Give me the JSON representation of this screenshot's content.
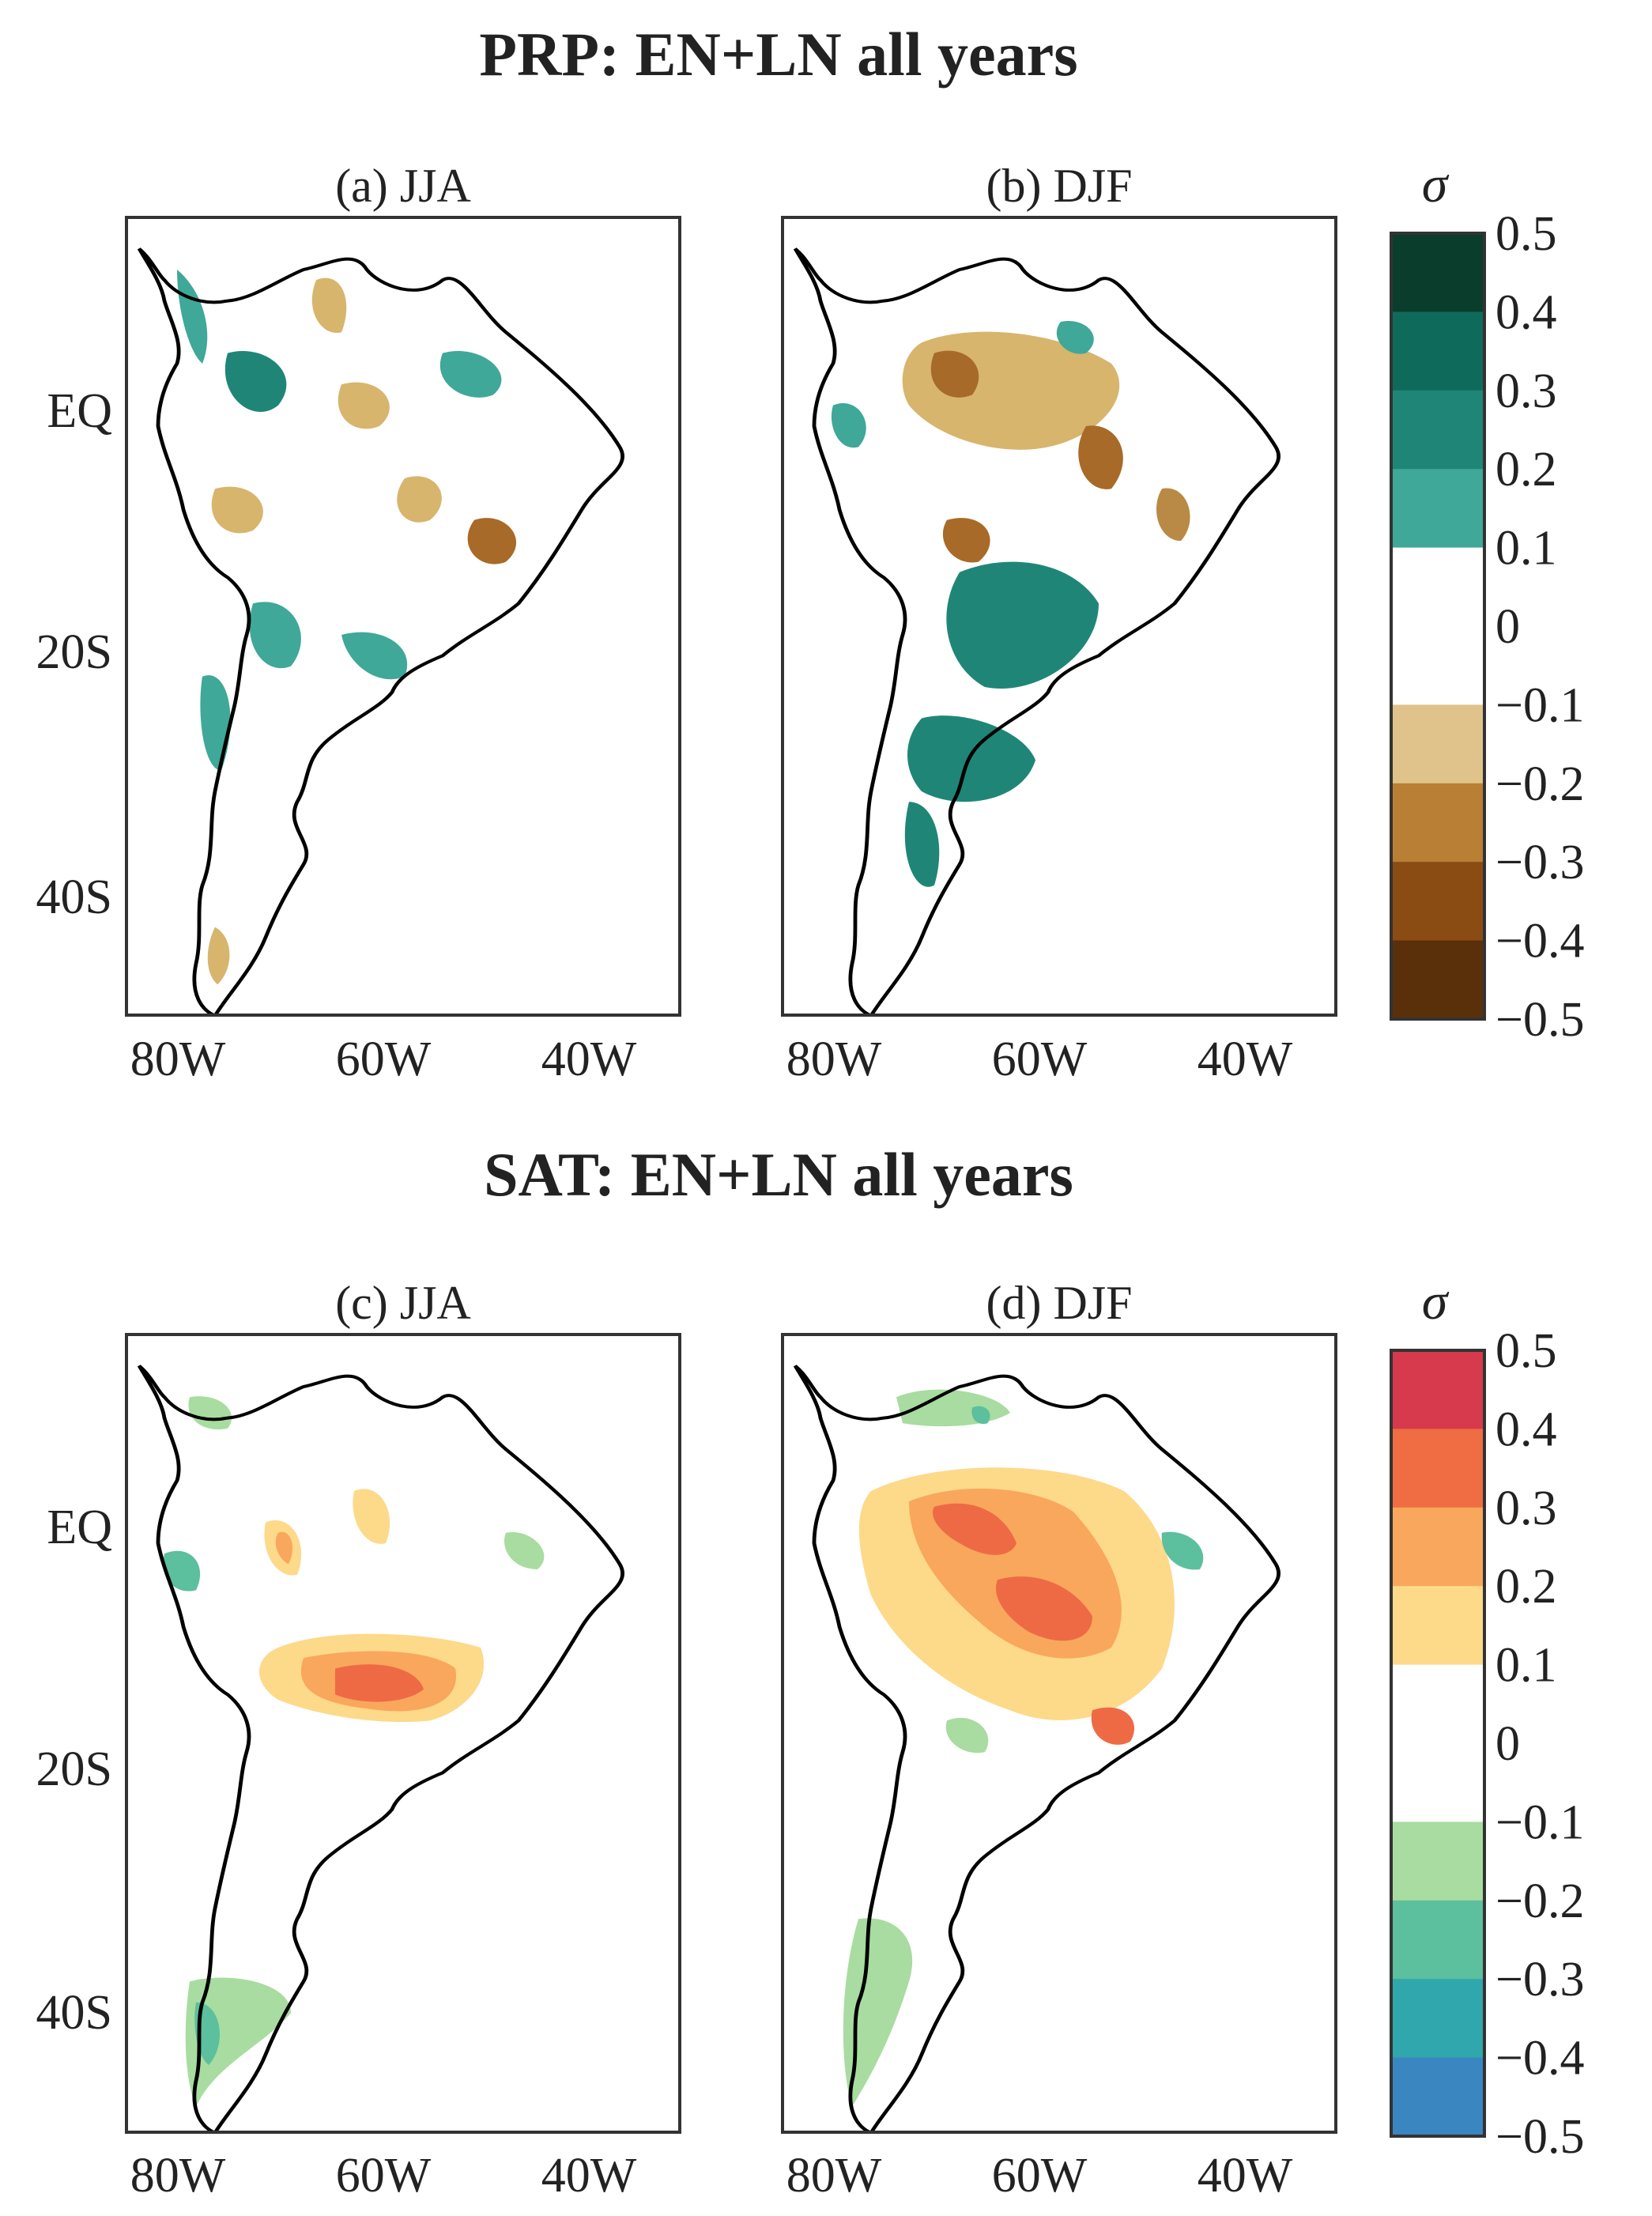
{
  "sections": [
    {
      "title": "PRP: EN+LN all years",
      "panels": [
        {
          "title": "(a) JJA"
        },
        {
          "title": "(b) DJF"
        }
      ],
      "colorbar": {
        "symbol": "σ",
        "ticks": [
          "0.5",
          "0.4",
          "0.3",
          "0.2",
          "0.1",
          "0",
          "−0.1",
          "−0.2",
          "−0.3",
          "−0.4",
          "−0.5"
        ],
        "colors": [
          "#0b3d2c",
          "#0e6b5b",
          "#1f8677",
          "#3fa898",
          "#ffffff",
          "#ffffff",
          "#dfc38a",
          "#b97f34",
          "#8a4c13",
          "#5a300a"
        ]
      }
    },
    {
      "title": "SAT: EN+LN all years",
      "panels": [
        {
          "title": "(c) JJA"
        },
        {
          "title": "(d) DJF"
        }
      ],
      "colorbar": {
        "symbol": "σ",
        "ticks": [
          "0.5",
          "0.4",
          "0.3",
          "0.2",
          "0.1",
          "0",
          "−0.1",
          "−0.2",
          "−0.3",
          "−0.4",
          "−0.5"
        ],
        "colors": [
          "#d63a4c",
          "#f06c42",
          "#f9a75c",
          "#fdd98a",
          "#ffffff",
          "#ffffff",
          "#a9dca0",
          "#5cbf9d",
          "#30a6ad",
          "#3a86c0"
        ]
      }
    }
  ],
  "axes": {
    "y_ticks": [
      "EQ",
      "20S",
      "40S"
    ],
    "x_ticks": [
      "80W",
      "60W",
      "40W"
    ]
  },
  "legend_colors": {
    "prp_positive": "#1f8677",
    "prp_negative": "#d7b56d",
    "prp_negative_strong": "#a86a28",
    "sat_positive": "#fdd98a",
    "sat_positive_mid": "#f9a75c",
    "sat_positive_strong": "#ee6a45",
    "sat_negative": "#a9dca0",
    "sat_negative_mid": "#5cbf9d",
    "sat_negative_strong": "#30a6ad"
  }
}
